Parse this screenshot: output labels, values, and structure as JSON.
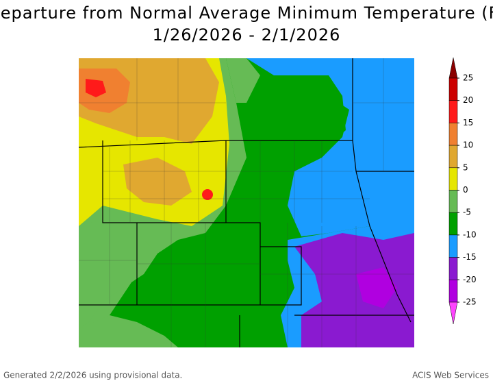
{
  "header": {
    "title": "Departure from Normal Average Minimum Temperature (F)",
    "subtitle": "1/26/2026 - 2/1/2026"
  },
  "legend": {
    "ticks": [
      25,
      20,
      15,
      10,
      5,
      0,
      -5,
      -10,
      -15,
      -20,
      -25
    ],
    "colors": [
      "#8b0000",
      "#cc0000",
      "#ff1a1a",
      "#f08030",
      "#e0a830",
      "#e6e600",
      "#66bb55",
      "#00a000",
      "#1a9cff",
      "#8a1ad0",
      "#b000e0",
      "#ff44ff"
    ]
  },
  "footer": {
    "left": "Generated 2/2/2026 using provisional data.",
    "right": "ACIS Web Services"
  }
}
